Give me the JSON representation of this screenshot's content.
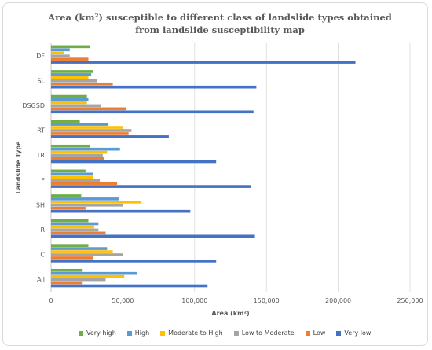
{
  "chart_data": {
    "type": "bar",
    "orientation": "horizontal",
    "title": "Area (km²) susceptible to different class of landslide types obtained from landslide susceptibility map",
    "xlabel": "Area (km²)",
    "ylabel": "Landslide Type",
    "xlim": [
      0,
      250000
    ],
    "xticks": [
      "0",
      "50,000",
      "100,000",
      "150,000",
      "200,000",
      "250,000"
    ],
    "grid": "vertical",
    "legend_position": "bottom",
    "categories": [
      "DF",
      "SL",
      "DSGSD",
      "RT",
      "TR",
      "F",
      "SH",
      "R",
      "C",
      "All"
    ],
    "series": [
      {
        "name": "Very high",
        "color": "#70ad47",
        "values": [
          27000,
          29000,
          25000,
          20000,
          27000,
          24000,
          21000,
          26000,
          26000,
          22000
        ]
      },
      {
        "name": "High",
        "color": "#5b9bd5",
        "values": [
          13000,
          28000,
          26000,
          40000,
          48000,
          29000,
          47000,
          33000,
          39000,
          60000
        ]
      },
      {
        "name": "Moderate to High",
        "color": "#ffc000",
        "values": [
          9000,
          26000,
          25000,
          50000,
          39000,
          29000,
          63000,
          30000,
          43000,
          51000
        ]
      },
      {
        "name": "Low to Moderate",
        "color": "#a5a5a5",
        "values": [
          13000,
          32000,
          35000,
          56000,
          36000,
          34000,
          50000,
          33000,
          50000,
          38000
        ]
      },
      {
        "name": "Low",
        "color": "#ed7d31",
        "values": [
          26000,
          43000,
          52000,
          54000,
          37000,
          46000,
          24000,
          38000,
          29000,
          22000
        ]
      },
      {
        "name": "Very low",
        "color": "#4472c4",
        "values": [
          212000,
          143000,
          141000,
          82000,
          115000,
          139000,
          97000,
          142000,
          115000,
          109000
        ]
      }
    ]
  }
}
